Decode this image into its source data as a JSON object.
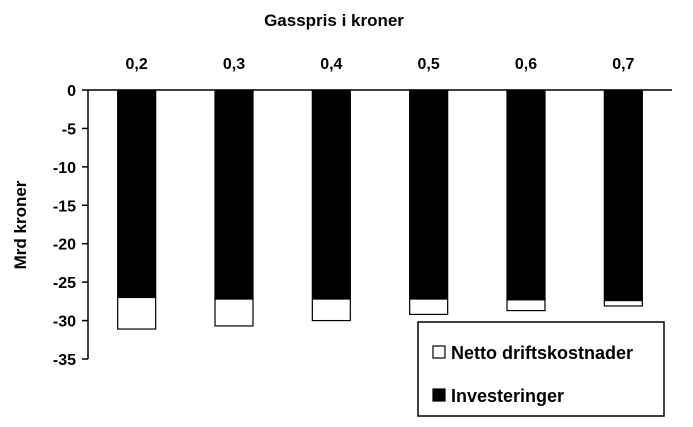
{
  "chart_data": {
    "type": "bar",
    "stacked": true,
    "title": "Gasspris i kroner",
    "xlabel": "",
    "ylabel": "Mrd kroner",
    "categories": [
      "0,2",
      "0,3",
      "0,4",
      "0,5",
      "0,6",
      "0,7"
    ],
    "x_axis_position": "top",
    "ylim": [
      -35,
      0
    ],
    "yticks": [
      0,
      -5,
      -10,
      -15,
      -20,
      -25,
      -30,
      -35
    ],
    "ytick_labels": [
      "0",
      "-5",
      "-10",
      "-15",
      "-20",
      "-25",
      "-30",
      "-35"
    ],
    "grid": false,
    "legend_position": "bottom-right",
    "series": [
      {
        "name": "Investeringer",
        "color": "#000000",
        "values": [
          -27.0,
          -27.2,
          -27.2,
          -27.2,
          -27.3,
          -27.4
        ]
      },
      {
        "name": "Netto driftskostnader",
        "color": "#ffffff",
        "values": [
          -4.1,
          -3.5,
          -2.8,
          -2.0,
          -1.4,
          -0.7
        ]
      }
    ],
    "legend": [
      "Netto driftskostnader",
      "Investeringer"
    ]
  }
}
